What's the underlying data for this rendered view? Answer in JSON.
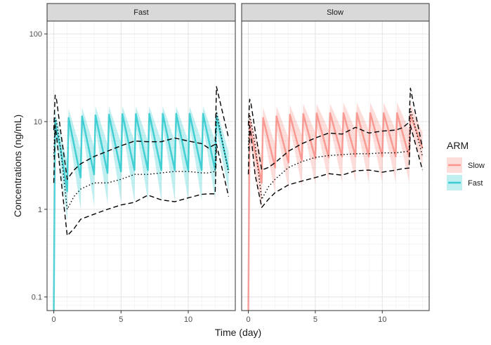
{
  "chart_data": {
    "type": "line",
    "xlabel": "Time (day)",
    "ylabel": "Concentrations (ng/mL)",
    "y_scale": "log10",
    "ylim": [
      0.07,
      140
    ],
    "xlim": [
      -0.5,
      13.5
    ],
    "x_ticks": [
      0,
      5,
      10
    ],
    "y_ticks": [
      0.1,
      1,
      10,
      100
    ],
    "y_tick_labels": [
      "0.1",
      "1",
      "10",
      "100"
    ],
    "grid": true,
    "legend": {
      "title": "ARM",
      "placement": "right",
      "entries": [
        {
          "label": "Slow",
          "color": "#F8766D"
        },
        {
          "label": "Fast",
          "color": "#00BFC4"
        }
      ]
    },
    "panels": [
      {
        "strip_label": "Fast",
        "color": "#00BFC4",
        "series": [
          {
            "role": "median",
            "style": "solid",
            "x": [
              0,
              0.1,
              0.2,
              0.5,
              1.0,
              1.1,
              2.0,
              2.1,
              3.0,
              3.1,
              4.0,
              4.1,
              5.0,
              5.1,
              6.0,
              6.1,
              7.0,
              7.1,
              8.0,
              8.1,
              9.0,
              9.1,
              10.0,
              10.1,
              11.0,
              11.1,
              12.0,
              12.1,
              13.0
            ],
            "y": [
              0.07,
              10.5,
              8.0,
              5.0,
              1.6,
              11.0,
              2.3,
              11.5,
              2.5,
              11.8,
              2.6,
              12.0,
              2.7,
              12.2,
              2.8,
              12.2,
              2.8,
              12.3,
              2.8,
              12.3,
              2.8,
              12.3,
              2.8,
              12.3,
              2.8,
              12.3,
              2.8,
              11.5,
              2.8
            ]
          },
          {
            "role": "band_upper",
            "x": [
              0,
              0.1,
              0.2,
              0.5,
              1.0,
              1.1,
              2.0,
              2.1,
              3.0,
              3.1,
              4.0,
              4.1,
              5.0,
              5.1,
              6.0,
              6.1,
              7.0,
              7.1,
              8.0,
              8.1,
              9.0,
              9.1,
              10.0,
              10.1,
              11.0,
              11.1,
              12.0,
              12.1,
              13.0
            ],
            "y": [
              0.07,
              14,
              11,
              7.5,
              3.5,
              14,
              4.8,
              14.5,
              5.2,
              15,
              5.5,
              15,
              5.8,
              15,
              6.0,
              15,
              6.0,
              15,
              6.0,
              15,
              6.0,
              15,
              6.0,
              15,
              6.0,
              15,
              6.0,
              14,
              4.5
            ]
          },
          {
            "role": "band_lower",
            "x": [
              0,
              0.1,
              0.2,
              0.5,
              1.0,
              1.1,
              2.0,
              2.1,
              3.0,
              3.1,
              4.0,
              4.1,
              5.0,
              5.1,
              6.0,
              6.1,
              7.0,
              7.1,
              8.0,
              8.1,
              9.0,
              9.1,
              10.0,
              10.1,
              11.0,
              11.1,
              12.0,
              12.1,
              13.0
            ],
            "y": [
              0.07,
              7.5,
              5.5,
              3.0,
              0.75,
              8.0,
              1.0,
              8.5,
              1.1,
              8.5,
              1.15,
              8.8,
              1.2,
              9.0,
              1.2,
              9.0,
              1.25,
              9.0,
              1.25,
              9.0,
              1.25,
              9.0,
              1.25,
              9.0,
              1.25,
              9.0,
              1.3,
              8.0,
              1.6
            ]
          },
          {
            "role": "upper_percentile",
            "style": "dashed",
            "x": [
              0,
              0.1,
              0.2,
              0.5,
              1.0,
              1.5,
              2,
              3,
              4,
              5,
              6,
              7,
              8,
              9,
              10,
              11,
              11.5,
              12,
              12.1,
              13.0
            ],
            "y": [
              8,
              20,
              18,
              8,
              2.2,
              2.8,
              3.3,
              4.0,
              4.6,
              5.3,
              6.0,
              5.9,
              5.9,
              6.5,
              6.0,
              5.6,
              5.0,
              5.5,
              25,
              6.5
            ]
          },
          {
            "role": "median_observed",
            "style": "dotted",
            "x": [
              0,
              0.1,
              0.2,
              0.5,
              1.0,
              1.5,
              2,
              3,
              4,
              5,
              6,
              7,
              8,
              9,
              10,
              11,
              11.5,
              12,
              12.1,
              13.0
            ],
            "y": [
              4,
              11,
              10,
              5,
              1.0,
              1.4,
              1.7,
              2.0,
              2.0,
              2.2,
              2.5,
              2.5,
              2.6,
              2.7,
              2.7,
              2.6,
              2.6,
              2.7,
              13,
              2.6
            ]
          },
          {
            "role": "lower_percentile",
            "style": "dashed",
            "x": [
              0,
              0.1,
              0.2,
              0.5,
              1.0,
              1.5,
              2,
              3,
              4,
              5,
              6,
              7,
              8,
              9,
              10,
              11,
              11.5,
              12,
              12.1,
              13.0
            ],
            "y": [
              2,
              9,
              7,
              2.5,
              0.5,
              0.6,
              0.77,
              0.88,
              1.0,
              1.12,
              1.2,
              1.45,
              1.28,
              1.22,
              1.35,
              1.48,
              1.5,
              1.5,
              5.5,
              1.4
            ]
          }
        ]
      },
      {
        "strip_label": "Slow",
        "color": "#F8766D",
        "series": [
          {
            "role": "median",
            "style": "solid",
            "x": [
              0,
              0.1,
              0.2,
              0.5,
              1.0,
              1.1,
              2.0,
              2.1,
              3.0,
              3.1,
              4.0,
              4.1,
              5.0,
              5.1,
              6.0,
              6.1,
              7.0,
              7.1,
              8.0,
              8.1,
              9.0,
              9.1,
              10.0,
              10.1,
              11.0,
              11.1,
              12.0,
              12.1,
              13.0
            ],
            "y": [
              0.07,
              10.0,
              7.5,
              4.5,
              2.0,
              11.0,
              3.0,
              11.5,
              3.4,
              12.0,
              3.6,
              12.2,
              3.8,
              12.4,
              3.9,
              12.5,
              4.0,
              12.5,
              4.0,
              12.5,
              4.0,
              12.5,
              4.0,
              12.5,
              4.0,
              12.5,
              4.0,
              12.0,
              5.0
            ]
          },
          {
            "role": "band_upper",
            "x": [
              0,
              0.1,
              0.2,
              0.5,
              1.0,
              1.1,
              2.0,
              2.1,
              3.0,
              3.1,
              4.0,
              4.1,
              5.0,
              5.1,
              6.0,
              6.1,
              7.0,
              7.1,
              8.0,
              8.1,
              9.0,
              9.1,
              10.0,
              10.1,
              11.0,
              11.1,
              12.0,
              12.1,
              13.0
            ],
            "y": [
              0.07,
              14,
              11,
              7.0,
              4.0,
              14.5,
              5.5,
              15,
              6.5,
              15.5,
              7.0,
              16,
              7.5,
              16,
              8.0,
              16,
              8.0,
              16.5,
              8.0,
              16.5,
              8.0,
              16.5,
              8.0,
              16.5,
              8.0,
              16.5,
              8.0,
              16,
              7.5
            ]
          },
          {
            "role": "band_lower",
            "x": [
              0,
              0.1,
              0.2,
              0.5,
              1.0,
              1.1,
              2.0,
              2.1,
              3.0,
              3.1,
              4.0,
              4.1,
              5.0,
              5.1,
              6.0,
              6.1,
              7.0,
              7.1,
              8.0,
              8.1,
              9.0,
              9.1,
              10.0,
              10.1,
              11.0,
              11.1,
              12.0,
              12.1,
              13.0
            ],
            "y": [
              0.07,
              7.0,
              5.0,
              2.5,
              1.0,
              8.0,
              1.5,
              8.5,
              1.7,
              8.8,
              1.8,
              9.0,
              1.9,
              9.0,
              2.0,
              9.0,
              2.0,
              9.0,
              2.0,
              9.0,
              2.0,
              9.0,
              2.0,
              9.0,
              2.0,
              9.0,
              2.0,
              8.5,
              3.2
            ]
          },
          {
            "role": "upper_percentile",
            "style": "dashed",
            "x": [
              0,
              0.1,
              0.2,
              0.5,
              1.0,
              1.5,
              2,
              3,
              4,
              5,
              6,
              7,
              8,
              9,
              10,
              11,
              11.5,
              12,
              12.1,
              13.0
            ],
            "y": [
              9,
              18,
              16,
              8,
              2.8,
              3.0,
              3.4,
              4.6,
              5.6,
              6.5,
              7.4,
              7.2,
              8.6,
              7.4,
              7.8,
              8.0,
              8.5,
              9.8,
              24,
              5.0
            ]
          },
          {
            "role": "median_observed",
            "style": "dotted",
            "x": [
              0,
              0.1,
              0.2,
              0.5,
              1.0,
              1.5,
              2,
              3,
              4,
              5,
              6,
              7,
              8,
              9,
              10,
              11,
              11.5,
              12,
              12.1,
              13.0
            ],
            "y": [
              5,
              12,
              10,
              5.5,
              1.3,
              1.8,
              2.2,
              3.0,
              3.5,
              3.9,
              4.1,
              4.2,
              4.3,
              4.3,
              4.4,
              4.4,
              4.5,
              4.6,
              14,
              4.0
            ]
          },
          {
            "role": "lower_percentile",
            "style": "dashed",
            "x": [
              0,
              0.1,
              0.2,
              0.5,
              1.0,
              1.5,
              2,
              3,
              4,
              5,
              6,
              7,
              8,
              9,
              10,
              11,
              11.5,
              12,
              12.1,
              13.0
            ],
            "y": [
              2.5,
              9,
              7,
              2.5,
              1.05,
              1.3,
              1.55,
              1.9,
              2.1,
              2.3,
              2.55,
              2.45,
              2.75,
              2.8,
              2.65,
              2.8,
              2.9,
              2.95,
              9,
              2.8
            ]
          }
        ]
      }
    ]
  }
}
